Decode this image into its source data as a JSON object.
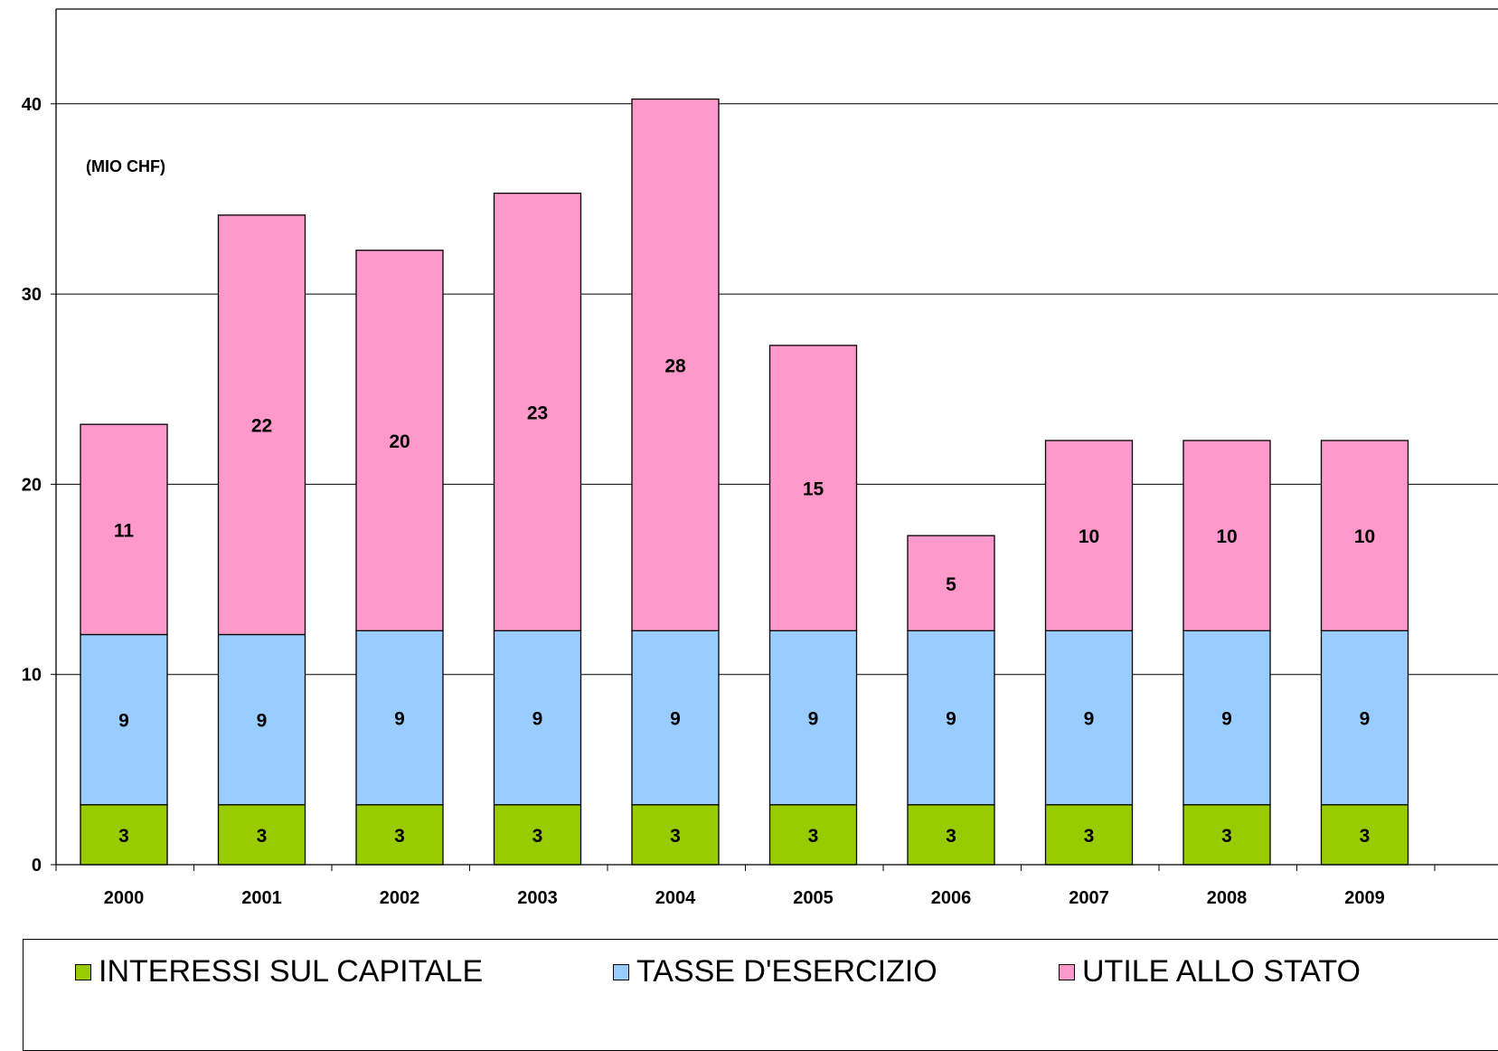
{
  "chart_data": {
    "type": "bar",
    "stacked": true,
    "unit_label": "(MIO CHF)",
    "categories": [
      "2000",
      "2001",
      "2002",
      "2003",
      "2004",
      "2005",
      "2006",
      "2007",
      "2008",
      "2009"
    ],
    "series": [
      {
        "name": "INTERESSI SUL CAPITALE",
        "color": "#99cc00",
        "values": [
          3.15,
          3.15,
          3.15,
          3.15,
          3.15,
          3.15,
          3.15,
          3.15,
          3.15,
          3.15
        ],
        "labels": [
          "3",
          "3",
          "3",
          "3",
          "3",
          "3",
          "3",
          "3",
          "3",
          "3"
        ]
      },
      {
        "name": "TASSE D'ESERCIZIO",
        "color": "#99ccff",
        "values": [
          8.95,
          8.95,
          9.15,
          9.15,
          9.15,
          9.15,
          9.15,
          9.15,
          9.15,
          9.15
        ],
        "labels": [
          "9",
          "9",
          "9",
          "9",
          "9",
          "9",
          "9",
          "9",
          "9",
          "9"
        ]
      },
      {
        "name": "UTILE ALLO STATO",
        "color": "#ff99cc",
        "values": [
          11.05,
          22.05,
          20.0,
          23.0,
          27.95,
          15.0,
          5.0,
          10.0,
          10.0,
          10.0
        ],
        "labels": [
          "11",
          "22",
          "20",
          "23",
          "28",
          "15",
          "5",
          "10",
          "10",
          "10"
        ]
      }
    ],
    "yticks": [
      "0",
      "10",
      "20",
      "30",
      "40"
    ],
    "ylim": [
      0,
      45
    ],
    "grid": true,
    "legend_position": "bottom"
  }
}
